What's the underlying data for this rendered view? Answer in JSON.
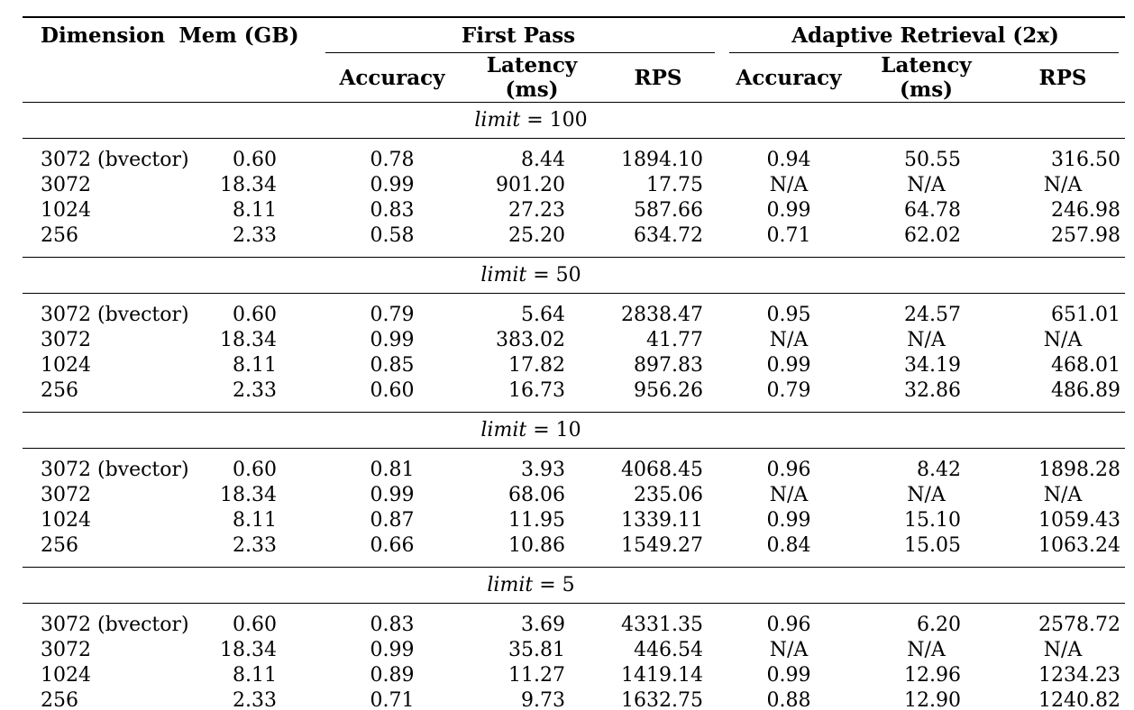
{
  "table": {
    "headers": {
      "dimension": "Dimension",
      "mem": "Mem (GB)",
      "first_pass": "First Pass",
      "adaptive": "Adaptive Retrieval (2x)"
    },
    "subheaders": [
      "Accuracy",
      "Latency (ms)",
      "RPS",
      "Accuracy",
      "Latency (ms)",
      "RPS"
    ],
    "na_text": "N/A",
    "blocks": [
      {
        "var": "limit",
        "op": "=",
        "value": "100",
        "rows": [
          [
            "3072 (bvector)",
            "0.60",
            "0.78",
            "8.44",
            "1894.10",
            "0.94",
            "50.55",
            "316.50"
          ],
          [
            "3072",
            "18.34",
            "0.99",
            "901.20",
            "17.75",
            "N/A",
            "N/A",
            "N/A"
          ],
          [
            "1024",
            "8.11",
            "0.83",
            "27.23",
            "587.66",
            "0.99",
            "64.78",
            "246.98"
          ],
          [
            "256",
            "2.33",
            "0.58",
            "25.20",
            "634.72",
            "0.71",
            "62.02",
            "257.98"
          ]
        ]
      },
      {
        "var": "limit",
        "op": "=",
        "value": "50",
        "rows": [
          [
            "3072 (bvector)",
            "0.60",
            "0.79",
            "5.64",
            "2838.47",
            "0.95",
            "24.57",
            "651.01"
          ],
          [
            "3072",
            "18.34",
            "0.99",
            "383.02",
            "41.77",
            "N/A",
            "N/A",
            "N/A"
          ],
          [
            "1024",
            "8.11",
            "0.85",
            "17.82",
            "897.83",
            "0.99",
            "34.19",
            "468.01"
          ],
          [
            "256",
            "2.33",
            "0.60",
            "16.73",
            "956.26",
            "0.79",
            "32.86",
            "486.89"
          ]
        ]
      },
      {
        "var": "limit",
        "op": "=",
        "value": "10",
        "rows": [
          [
            "3072 (bvector)",
            "0.60",
            "0.81",
            "3.93",
            "4068.45",
            "0.96",
            "8.42",
            "1898.28"
          ],
          [
            "3072",
            "18.34",
            "0.99",
            "68.06",
            "235.06",
            "N/A",
            "N/A",
            "N/A"
          ],
          [
            "1024",
            "8.11",
            "0.87",
            "11.95",
            "1339.11",
            "0.99",
            "15.10",
            "1059.43"
          ],
          [
            "256",
            "2.33",
            "0.66",
            "10.86",
            "1549.27",
            "0.84",
            "15.05",
            "1063.24"
          ]
        ]
      },
      {
        "var": "limit",
        "op": "=",
        "value": "5",
        "rows": [
          [
            "3072 (bvector)",
            "0.60",
            "0.83",
            "3.69",
            "4331.35",
            "0.96",
            "6.20",
            "2578.72"
          ],
          [
            "3072",
            "18.34",
            "0.99",
            "35.81",
            "446.54",
            "N/A",
            "N/A",
            "N/A"
          ],
          [
            "1024",
            "8.11",
            "0.89",
            "11.27",
            "1419.14",
            "0.99",
            "12.96",
            "1234.23"
          ],
          [
            "256",
            "2.33",
            "0.71",
            "9.73",
            "1632.75",
            "0.88",
            "12.90",
            "1240.82"
          ]
        ]
      }
    ]
  }
}
